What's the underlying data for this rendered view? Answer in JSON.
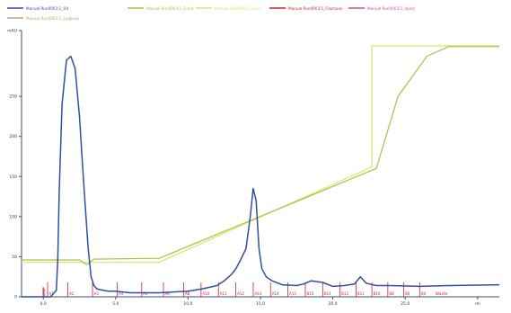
{
  "chart_data": {
    "type": "line",
    "xlim": [
      -1.5,
      31.5
    ],
    "ylim": [
      0,
      332
    ],
    "x_ticks": [
      0.0,
      5.0,
      10.0,
      15.0,
      20.0,
      25.0,
      30.0
    ],
    "x_tick_labels": [
      "0.0",
      "5.0",
      "10.0",
      "15.0",
      "20.0",
      "25.0",
      "ml"
    ],
    "x_unit_label": "Waste",
    "y_ticks": [
      0,
      50,
      100,
      150,
      200,
      250,
      332
    ],
    "y_tick_labels": [
      "0",
      "50",
      "100",
      "150",
      "200",
      "250",
      "mAU"
    ],
    "legend_placement": "top",
    "series": [
      {
        "name": "Manual Run0003:1_UV",
        "color": "#2f4f9f",
        "x": [
          -1.5,
          0.0,
          0.5,
          0.9,
          1.0,
          1.1,
          1.3,
          1.6,
          1.9,
          2.2,
          2.5,
          2.8,
          3.1,
          3.3,
          3.5,
          3.7,
          3.9,
          4.2,
          4.5,
          5.0,
          6.0,
          8.0,
          10.0,
          11.0,
          12.0,
          12.5,
          13.0,
          13.3,
          13.6,
          14.0,
          14.3,
          14.5,
          14.7,
          14.9,
          15.1,
          15.4,
          15.8,
          16.5,
          17.5,
          18.0,
          18.5,
          19.3,
          20.0,
          20.8,
          21.5,
          21.9,
          22.3,
          23.0,
          24.0,
          26.0,
          28.0,
          31.5
        ],
        "y": [
          0,
          0,
          0,
          8,
          45,
          130,
          240,
          295,
          300,
          285,
          225,
          140,
          60,
          25,
          14,
          10,
          9,
          8,
          7,
          7,
          5,
          5,
          7,
          10,
          14,
          20,
          28,
          35,
          45,
          60,
          100,
          135,
          120,
          60,
          35,
          25,
          20,
          15,
          14,
          16,
          20,
          18,
          13,
          14,
          16,
          25,
          17,
          14,
          14,
          13,
          14,
          15
        ]
      },
      {
        "name": "Manual Run0003:1_Cond",
        "color": "#a8c244",
        "x": [
          -1.5,
          2.5,
          3.0,
          3.5,
          8.0,
          23.0,
          24.5,
          26.5,
          28.0,
          31.5
        ],
        "y": [
          46,
          46,
          40,
          47,
          48,
          160,
          250,
          300,
          312,
          312
        ]
      },
      {
        "name": "Manual Run0003:1_Conc",
        "color": "#d6e66a",
        "x": [
          -1.5,
          8.0,
          22.7,
          22.7,
          31.5
        ],
        "y": [
          43,
          43,
          162,
          313,
          313
        ]
      },
      {
        "name": "Manual Run0003:1_Fractions",
        "color": "#cc2222",
        "x": [],
        "y": []
      },
      {
        "name": "Manual Run0003:1_Inject",
        "color": "#c050a8",
        "x": [],
        "y": []
      },
      {
        "name": "Manual Run0003:1_Logbook",
        "color": "#c8a070",
        "x": [],
        "y": []
      }
    ],
    "fractions": {
      "positions": [
        0.3,
        1.7,
        3.4,
        5.1,
        6.8,
        8.3,
        9.7,
        10.9,
        12.1,
        13.3,
        14.5,
        15.7,
        16.9,
        18.1,
        19.3,
        20.5,
        21.6,
        22.7,
        23.8,
        24.9,
        26.0
      ],
      "labels": [
        "A1",
        "A2",
        "A3",
        "A4",
        "A5",
        "A6",
        "A8",
        "A10",
        "A11",
        "A12",
        "A13",
        "A14",
        "A15",
        "B15",
        "B14",
        "B12",
        "B11",
        "B10",
        "B8",
        "B6",
        "B4"
      ]
    }
  }
}
